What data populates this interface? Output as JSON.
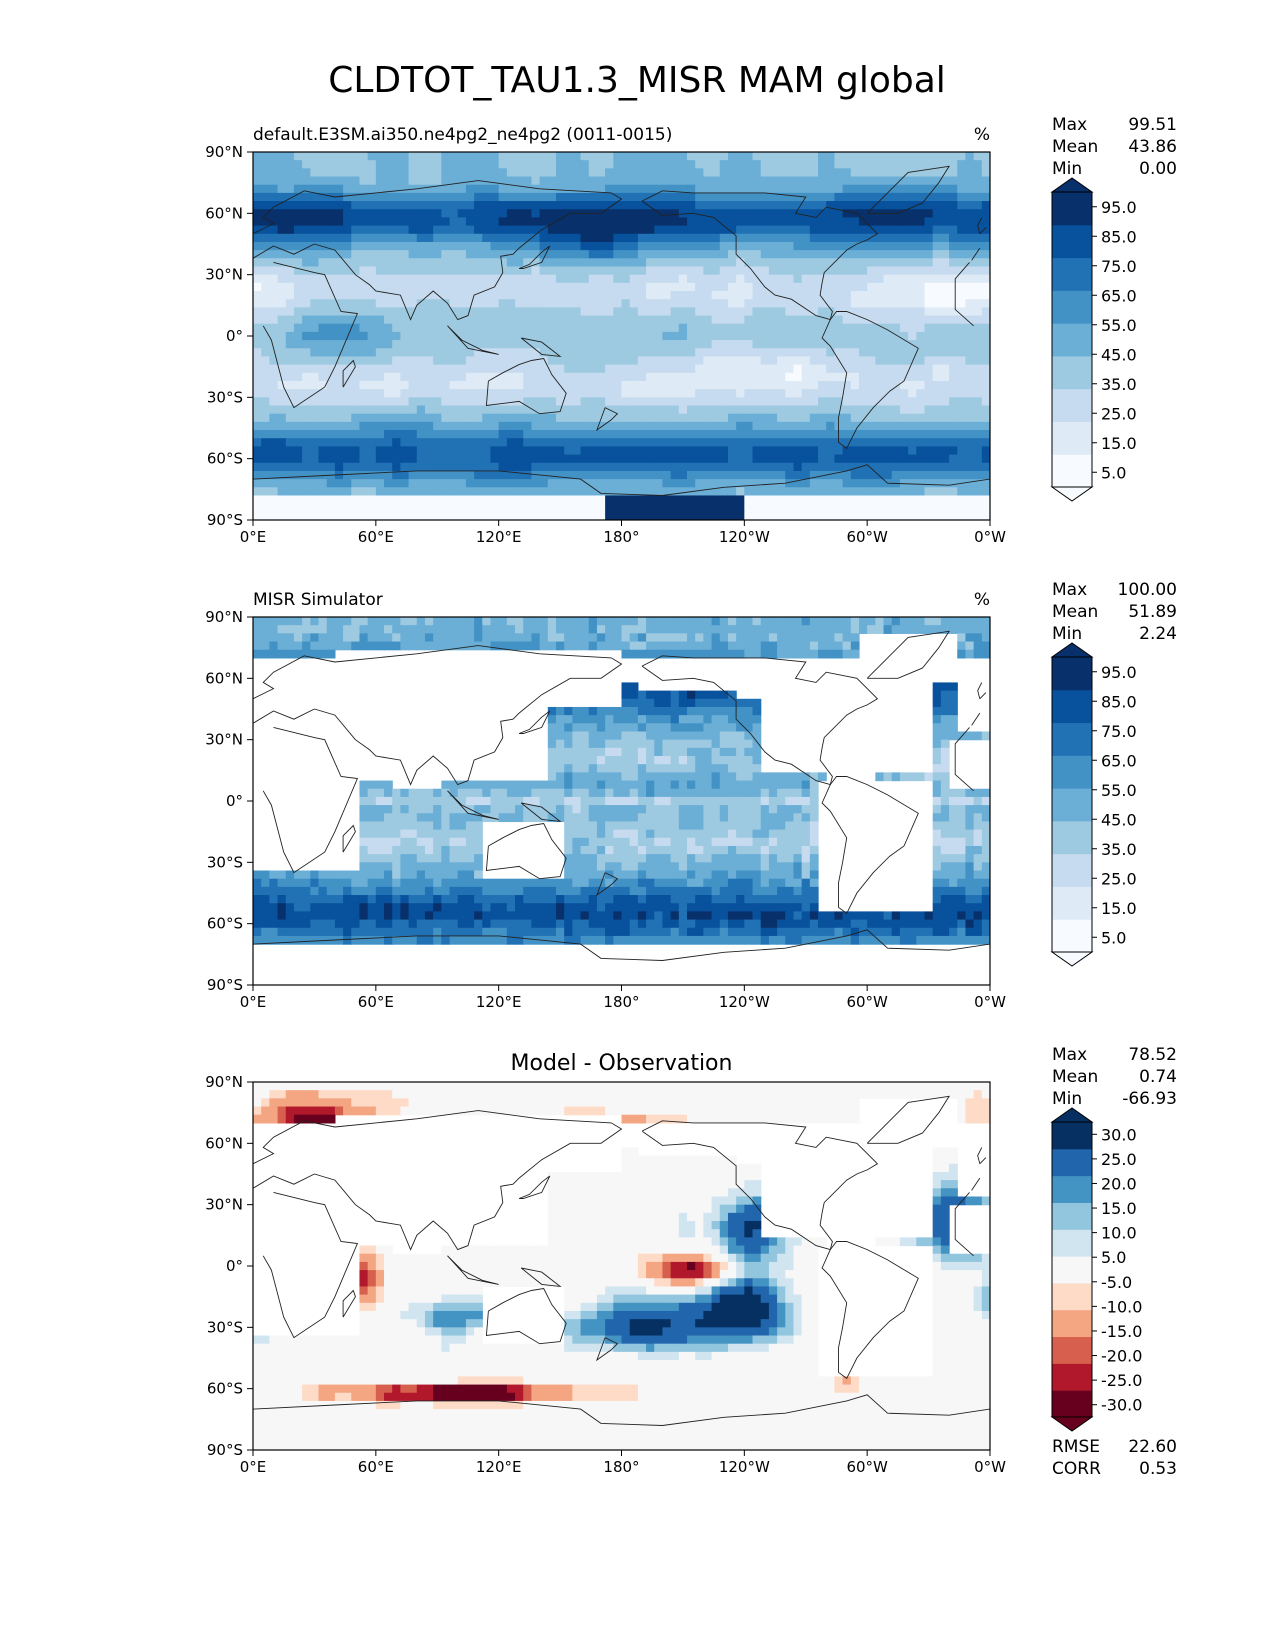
{
  "figure": {
    "title": "CLDTOT_TAU1.3_MISR MAM global"
  },
  "colors": {
    "blues": [
      "#f7fbff",
      "#deebf7",
      "#c6dbef",
      "#9ecae1",
      "#6baed6",
      "#4292c6",
      "#2171b5",
      "#08519c",
      "#08306b"
    ],
    "diff": [
      "#67001f",
      "#b2182b",
      "#d6604d",
      "#f4a582",
      "#fddbc7",
      "#f7f7f7",
      "#d1e5f0",
      "#92c5de",
      "#4393c3",
      "#2166ac",
      "#053061"
    ],
    "land_line": "#222222"
  },
  "chart_data": [
    {
      "type": "heatmap",
      "name": "test",
      "left_title": "default.E3SM.ai350.ne4pg2_ne4pg2 (0011-0015)",
      "units": "%",
      "stats": [
        {
          "label": "Max",
          "value": "99.51"
        },
        {
          "label": "Mean",
          "value": "43.86"
        },
        {
          "label": "Min",
          "value": "0.00"
        }
      ],
      "colorbar_ticks": [
        "5.0",
        "15.0",
        "25.0",
        "35.0",
        "45.0",
        "55.0",
        "65.0",
        "75.0",
        "85.0",
        "95.0"
      ],
      "x_ticks": [
        "0°E",
        "60°E",
        "120°E",
        "180°",
        "120°W",
        "60°W",
        "0°W"
      ],
      "y_ticks": [
        "90°N",
        "60°N",
        "30°N",
        "0°",
        "30°S",
        "60°S",
        "90°S"
      ],
      "xlim": [
        0,
        360
      ],
      "ylim": [
        -90,
        90
      ]
    },
    {
      "type": "heatmap",
      "name": "reference",
      "left_title": "MISR Simulator",
      "units": "%",
      "stats": [
        {
          "label": "Max",
          "value": "100.00"
        },
        {
          "label": "Mean",
          "value": "51.89"
        },
        {
          "label": "Min",
          "value": "2.24"
        }
      ],
      "colorbar_ticks": [
        "5.0",
        "15.0",
        "25.0",
        "35.0",
        "45.0",
        "55.0",
        "65.0",
        "75.0",
        "85.0",
        "95.0"
      ],
      "x_ticks": [
        "0°E",
        "60°E",
        "120°E",
        "180°",
        "120°W",
        "60°W",
        "0°W"
      ],
      "y_ticks": [
        "90°N",
        "60°N",
        "30°N",
        "0°",
        "30°S",
        "60°S",
        "90°S"
      ],
      "xlim": [
        0,
        360
      ],
      "ylim": [
        -90,
        90
      ]
    },
    {
      "type": "heatmap",
      "name": "difference",
      "center_title": "Model - Observation",
      "stats": [
        {
          "label": "Max",
          "value": "78.52"
        },
        {
          "label": "Mean",
          "value": "0.74"
        },
        {
          "label": "Min",
          "value": "-66.93"
        }
      ],
      "extra_stats": [
        {
          "label": "RMSE",
          "value": "22.60"
        },
        {
          "label": "CORR",
          "value": "0.53"
        }
      ],
      "colorbar_ticks": [
        "-30.0",
        "-25.0",
        "-20.0",
        "-15.0",
        "-10.0",
        "-5.0",
        "5.0",
        "10.0",
        "15.0",
        "20.0",
        "25.0",
        "30.0"
      ],
      "x_ticks": [
        "0°E",
        "60°E",
        "120°E",
        "180°",
        "120°W",
        "60°W",
        "0°W"
      ],
      "y_ticks": [
        "90°N",
        "60°N",
        "30°N",
        "0°",
        "30°S",
        "60°S",
        "90°S"
      ],
      "xlim": [
        0,
        360
      ],
      "ylim": [
        -90,
        90
      ]
    }
  ]
}
